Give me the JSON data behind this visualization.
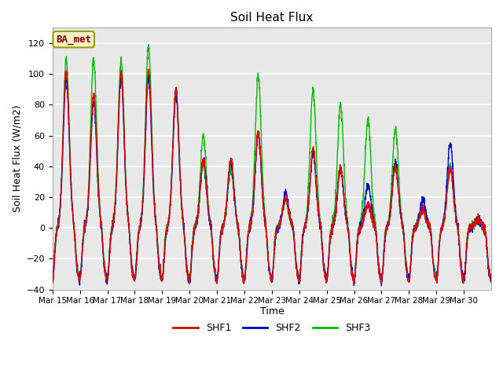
{
  "title": "Soil Heat Flux",
  "ylabel": "Soil Heat Flux (W/m2)",
  "xlabel": "Time",
  "ylim": [
    -40,
    130
  ],
  "plot_bg_color": "#e8e8e8",
  "grid_color": "white",
  "annotation_text": "BA_met",
  "annotation_bg": "#f5f5c8",
  "annotation_border": "#999900",
  "annotation_text_color": "#8B0000",
  "legend_labels": [
    "SHF1",
    "SHF2",
    "SHF3"
  ],
  "legend_colors": [
    "#dd0000",
    "#0000cc",
    "#00bb00"
  ],
  "line_width": 1.0,
  "xtick_labels": [
    "Mar 15",
    "Mar 16",
    "Mar 17",
    "Mar 18",
    "Mar 19",
    "Mar 20",
    "Mar 21",
    "Mar 22",
    "Mar 23",
    "Mar 24",
    "Mar 25",
    "Mar 26",
    "Mar 27",
    "Mar 28",
    "Mar 29",
    "Mar 30"
  ],
  "n_days": 16,
  "pts_per_day": 144,
  "day_peaks_shf1": [
    101,
    86,
    101,
    103,
    90,
    44,
    44,
    62,
    18,
    51,
    40,
    15,
    39,
    12,
    39,
    5
  ],
  "day_peaks_shf2": [
    97,
    82,
    97,
    98,
    86,
    43,
    43,
    60,
    22,
    48,
    38,
    28,
    42,
    18,
    55,
    5
  ],
  "day_peaks_shf3": [
    109,
    109,
    109,
    118,
    90,
    60,
    38,
    99,
    18,
    90,
    80,
    70,
    65,
    12,
    39,
    5
  ],
  "night_trough": -33,
  "title_fontsize": 11,
  "ylabel_fontsize": 9,
  "xlabel_fontsize": 9,
  "tick_fontsize": 8
}
